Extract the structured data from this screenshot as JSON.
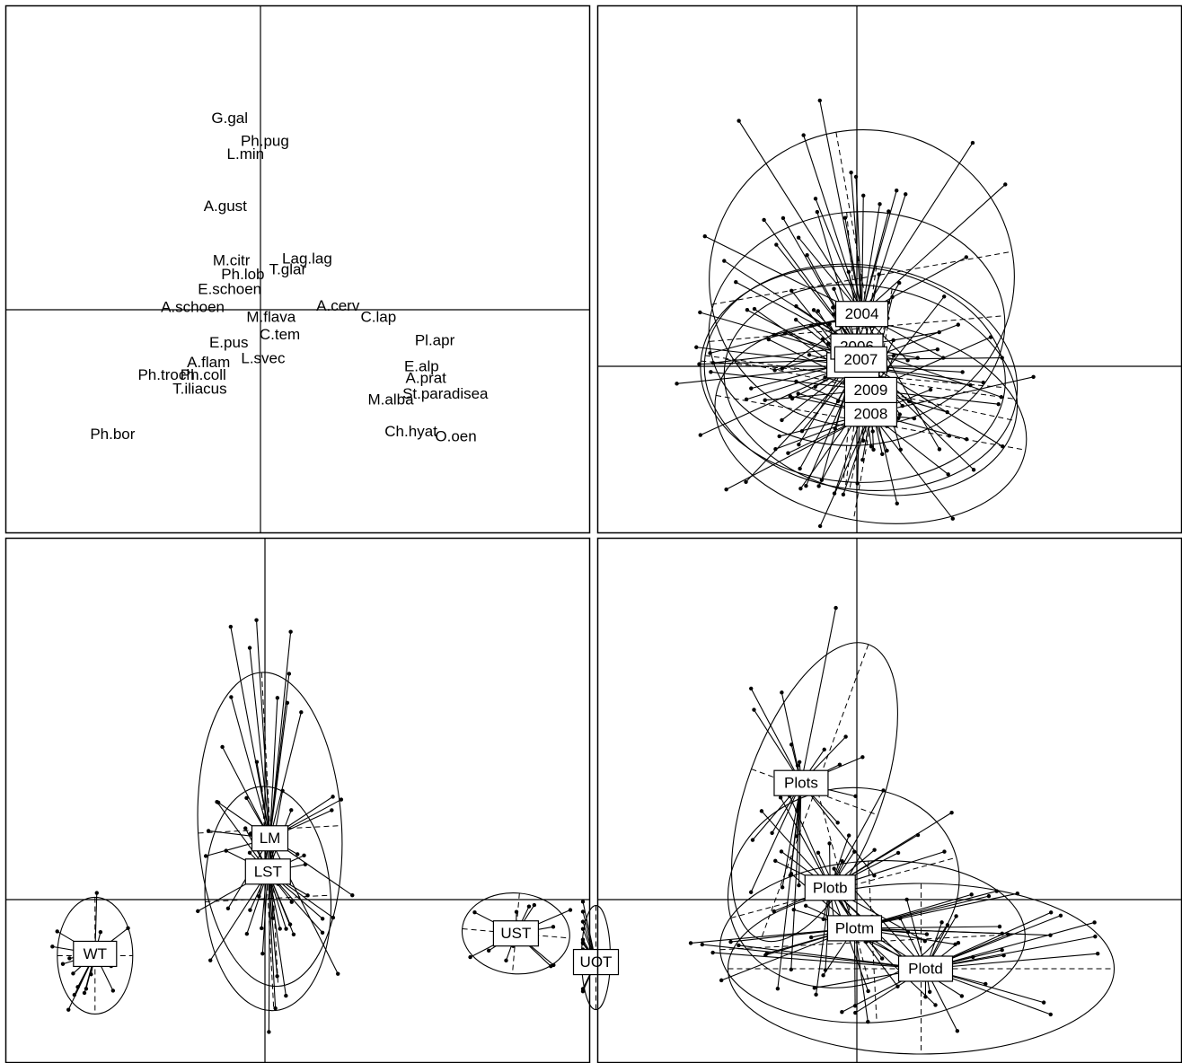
{
  "chart_data": [
    {
      "type": "scatter",
      "title": "",
      "species": [
        {
          "name": "G.gal",
          "x": -0.35,
          "y": 1.93
        },
        {
          "name": "Ph.pug",
          "x": 0.05,
          "y": 1.7
        },
        {
          "name": "L.min",
          "x": -0.17,
          "y": 1.57
        },
        {
          "name": "A.gust",
          "x": -0.4,
          "y": 1.04
        },
        {
          "name": "M.citr",
          "x": -0.33,
          "y": 0.49
        },
        {
          "name": "Lag.lag",
          "x": 0.53,
          "y": 0.51
        },
        {
          "name": "Ph.lob",
          "x": -0.2,
          "y": 0.35
        },
        {
          "name": "T.glar",
          "x": 0.31,
          "y": 0.4
        },
        {
          "name": "E.schoen",
          "x": -0.35,
          "y": 0.2
        },
        {
          "name": "A.schoen",
          "x": -0.77,
          "y": 0.02
        },
        {
          "name": "A.cerv",
          "x": 0.88,
          "y": 0.03
        },
        {
          "name": "M.flava",
          "x": 0.12,
          "y": -0.08
        },
        {
          "name": "C.lap",
          "x": 1.34,
          "y": -0.08
        },
        {
          "name": "C.tem",
          "x": 0.22,
          "y": -0.26
        },
        {
          "name": "Pl.apr",
          "x": 1.98,
          "y": -0.32
        },
        {
          "name": "E.pus",
          "x": -0.36,
          "y": -0.34
        },
        {
          "name": "L.svec",
          "x": 0.03,
          "y": -0.5
        },
        {
          "name": "A.flam",
          "x": -0.59,
          "y": -0.54
        },
        {
          "name": "E.alp",
          "x": 1.83,
          "y": -0.58
        },
        {
          "name": "Ph.troch",
          "x": -1.07,
          "y": -0.67
        },
        {
          "name": "Ph.coll",
          "x": -0.65,
          "y": -0.67
        },
        {
          "name": "A.prat",
          "x": 1.88,
          "y": -0.7
        },
        {
          "name": "T.iliacus",
          "x": -0.69,
          "y": -0.81
        },
        {
          "name": "St.paradisea",
          "x": 2.1,
          "y": -0.86
        },
        {
          "name": "M.alba",
          "x": 1.48,
          "y": -0.92
        },
        {
          "name": "Ch.hyat",
          "x": 1.71,
          "y": -1.24
        },
        {
          "name": "O.oen",
          "x": 2.22,
          "y": -1.29
        },
        {
          "name": "Ph.bor",
          "x": -1.68,
          "y": -1.27
        }
      ]
    },
    {
      "type": "scatter",
      "grouping": "year",
      "groups": [
        "2004",
        "2005",
        "2006",
        "2007",
        "2008",
        "2009"
      ],
      "group_centers": [
        {
          "label": "2004",
          "x": 0.05,
          "y": 0.53
        },
        {
          "label": "2005",
          "x": -0.04,
          "y": 0.01
        },
        {
          "label": "2006",
          "x": 0.0,
          "y": 0.2
        },
        {
          "label": "2007",
          "x": 0.04,
          "y": 0.07
        },
        {
          "label": "2008",
          "x": 0.14,
          "y": -0.48
        },
        {
          "label": "2009",
          "x": 0.14,
          "y": -0.24
        }
      ]
    },
    {
      "type": "scatter",
      "grouping": "zone",
      "groups": [
        "LM",
        "LST",
        "WT",
        "UST",
        "UOT"
      ],
      "group_centers": [
        {
          "label": "LM",
          "x": 0.05,
          "y": 1.05
        },
        {
          "label": "LST",
          "x": 0.03,
          "y": 0.48
        },
        {
          "label": "WT",
          "x": -1.72,
          "y": -0.93
        },
        {
          "label": "UST",
          "x": 2.54,
          "y": -0.58
        },
        {
          "label": "UOT",
          "x": 3.35,
          "y": -1.07
        }
      ]
    },
    {
      "type": "scatter",
      "grouping": "plot",
      "groups": [
        "Plots",
        "Plotb",
        "Plotm",
        "Plotd"
      ],
      "group_centers": [
        {
          "label": "Plots",
          "x": -0.73,
          "y": 1.18
        },
        {
          "label": "Plotb",
          "x": -0.35,
          "y": 0.12
        },
        {
          "label": "Plotm",
          "x": -0.03,
          "y": -0.29
        },
        {
          "label": "Plotd",
          "x": 0.9,
          "y": -0.7
        }
      ]
    }
  ]
}
